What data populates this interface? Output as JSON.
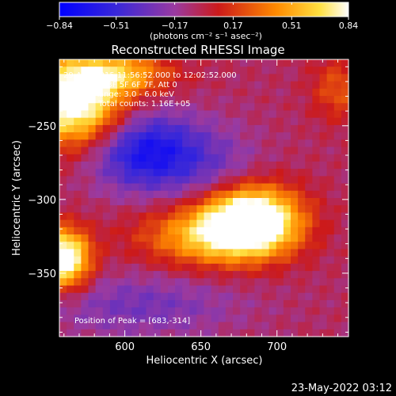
{
  "chart_data": {
    "type": "heatmap",
    "title": "Reconstructed RHESSI Image",
    "xlabel": "Heliocentric X (arcsec)",
    "ylabel": "Heliocentric Y (arcsec)",
    "xlim": [
      557,
      747
    ],
    "ylim": [
      -393,
      -205
    ],
    "x_ticks": [
      600,
      650,
      700
    ],
    "y_ticks": [
      -250,
      -300,
      -350
    ],
    "x_tick_labels": [
      "600",
      "650",
      "700"
    ],
    "y_tick_labels": [
      "−250",
      "−300",
      "−350"
    ],
    "colorbar": {
      "range": [
        -0.84,
        0.84
      ],
      "tick_values": [
        -0.84,
        -0.51,
        -0.17,
        0.17,
        0.51,
        0.84
      ],
      "tick_labels": [
        "−0.84",
        "−0.51",
        "−0.17",
        "0.17",
        "0.51",
        "0.84"
      ],
      "unit_label": "(photons cm⁻² s⁻¹ asec⁻²)"
    },
    "peak": {
      "x": 683,
      "y": -314,
      "value": 0.84
    },
    "sources": [
      {
        "x": 683,
        "y": -314,
        "sx": 22,
        "sy": 16,
        "amp": 1.2
      },
      {
        "x": 652,
        "y": -325,
        "sx": 30,
        "sy": 14,
        "amp": 0.55
      },
      {
        "x": 560,
        "y": -340,
        "sx": 12,
        "sy": 14,
        "amp": 1.05
      },
      {
        "x": 567,
        "y": -235,
        "sx": 22,
        "sy": 20,
        "amp": 1.0
      },
      {
        "x": 595,
        "y": -215,
        "sx": 25,
        "sy": 10,
        "amp": 0.55
      },
      {
        "x": 740,
        "y": -225,
        "sx": 12,
        "sy": 15,
        "amp": 0.3
      },
      {
        "x": 615,
        "y": -268,
        "sx": 25,
        "sy": 18,
        "amp": -0.65
      },
      {
        "x": 660,
        "y": -280,
        "sx": 22,
        "sy": 20,
        "amp": -0.2
      },
      {
        "x": 610,
        "y": -372,
        "sx": 45,
        "sy": 15,
        "amp": -0.25
      }
    ],
    "base_level": -0.05
  },
  "annotations": {
    "lines": [
      "29-Aug-2015 11:56:52.000 to 12:02:52.000",
      "Detectors: 3F 5F 6F 7F, Att 0",
      "Energy Range: 3.0 - 6.0 keV",
      "Clean     Total counts: 1.16E+05"
    ],
    "peak_text": "Position of Peak = [683,-314]"
  },
  "footer": {
    "date": "23-May-2022 03:12"
  },
  "colors": {
    "background": "#000000",
    "text": "#ffffff"
  }
}
